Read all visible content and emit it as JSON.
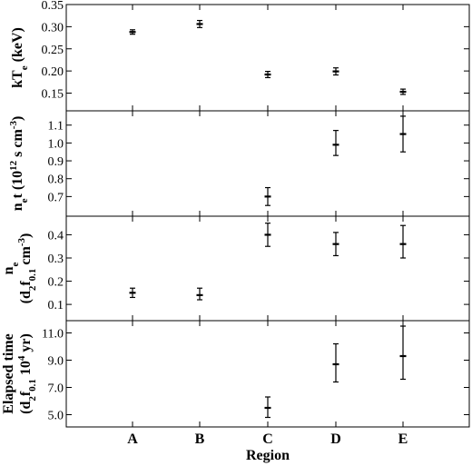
{
  "chart_data": {
    "type": "scatter",
    "categories": [
      "A",
      "B",
      "C",
      "D",
      "E"
    ],
    "xlabel": "Region",
    "panels": [
      {
        "ylabel_parts": [
          {
            "text": "kT"
          },
          {
            "text": "e",
            "sub": true
          },
          {
            "text": " (keV)"
          }
        ],
        "ylim": [
          0.11,
          0.35
        ],
        "yticks": [
          0.15,
          0.2,
          0.25,
          0.3,
          0.35
        ],
        "ytick_labels": [
          "0.15",
          "0.20",
          "0.25",
          "0.30",
          "0.35"
        ],
        "points": [
          {
            "category": "A",
            "value": 0.288,
            "lo": 0.283,
            "hi": 0.293
          },
          {
            "category": "B",
            "value": 0.306,
            "lo": 0.298,
            "hi": 0.314
          },
          {
            "category": "C",
            "value": 0.192,
            "lo": 0.185,
            "hi": 0.199
          },
          {
            "category": "D",
            "value": 0.199,
            "lo": 0.191,
            "hi": 0.207
          },
          {
            "category": "E",
            "value": 0.153,
            "lo": 0.147,
            "hi": 0.159
          }
        ]
      },
      {
        "ylabel_parts": [
          {
            "text": "n"
          },
          {
            "text": "e",
            "sub": true
          },
          {
            "text": "t (10"
          },
          {
            "text": "12",
            "sup": true
          },
          {
            "text": " s cm"
          },
          {
            "text": "-3",
            "sup": true
          },
          {
            "text": ")"
          }
        ],
        "ylim": [
          0.59,
          1.18
        ],
        "yticks": [
          0.7,
          0.8,
          0.9,
          1.0,
          1.1
        ],
        "ytick_labels": [
          "0.7",
          "0.8",
          "0.9",
          "1.0",
          "1.1"
        ],
        "points": [
          {
            "category": "C",
            "value": 0.7,
            "lo": 0.65,
            "hi": 0.75
          },
          {
            "category": "D",
            "value": 0.99,
            "lo": 0.93,
            "hi": 1.07
          },
          {
            "category": "E",
            "value": 1.05,
            "lo": 0.95,
            "hi": 1.15
          }
        ]
      },
      {
        "ylabel_lines": [
          [
            {
              "text": "n"
            },
            {
              "text": "e",
              "sub": true
            }
          ],
          [
            {
              "text": "(d"
            },
            {
              "text": "2",
              "sub": true
            },
            {
              "text": "f"
            },
            {
              "text": "0.1",
              "sub": true
            },
            {
              "text": " cm"
            },
            {
              "text": "-3",
              "sup": true
            },
            {
              "text": ")"
            }
          ]
        ],
        "ylim": [
          0.03,
          0.48
        ],
        "yticks": [
          0.1,
          0.2,
          0.3,
          0.4
        ],
        "ytick_labels": [
          "0.1",
          "0.2",
          "0.3",
          "0.4"
        ],
        "points": [
          {
            "category": "A",
            "value": 0.15,
            "lo": 0.13,
            "hi": 0.17
          },
          {
            "category": "B",
            "value": 0.14,
            "lo": 0.12,
            "hi": 0.17
          },
          {
            "category": "C",
            "value": 0.4,
            "lo": 0.35,
            "hi": 0.45
          },
          {
            "category": "D",
            "value": 0.36,
            "lo": 0.31,
            "hi": 0.41
          },
          {
            "category": "E",
            "value": 0.36,
            "lo": 0.3,
            "hi": 0.44
          }
        ]
      },
      {
        "ylabel_lines": [
          [
            {
              "text": "Elapsed time"
            }
          ],
          [
            {
              "text": "(d"
            },
            {
              "text": "2",
              "sub": true
            },
            {
              "text": "f"
            },
            {
              "text": "0.1",
              "sub": true
            },
            {
              "text": " 10"
            },
            {
              "text": "4",
              "sup": true
            },
            {
              "text": " yr)"
            }
          ]
        ],
        "ylim": [
          4.1,
          11.9
        ],
        "yticks": [
          5.0,
          7.0,
          9.0,
          11.0
        ],
        "ytick_labels": [
          "5.0",
          "7.0",
          "9.0",
          "11.0"
        ],
        "points": [
          {
            "category": "C",
            "value": 5.5,
            "lo": 4.8,
            "hi": 6.3
          },
          {
            "category": "D",
            "value": 8.7,
            "lo": 7.4,
            "hi": 10.2
          },
          {
            "category": "E",
            "value": 9.3,
            "lo": 7.6,
            "hi": 11.5
          }
        ]
      }
    ]
  }
}
